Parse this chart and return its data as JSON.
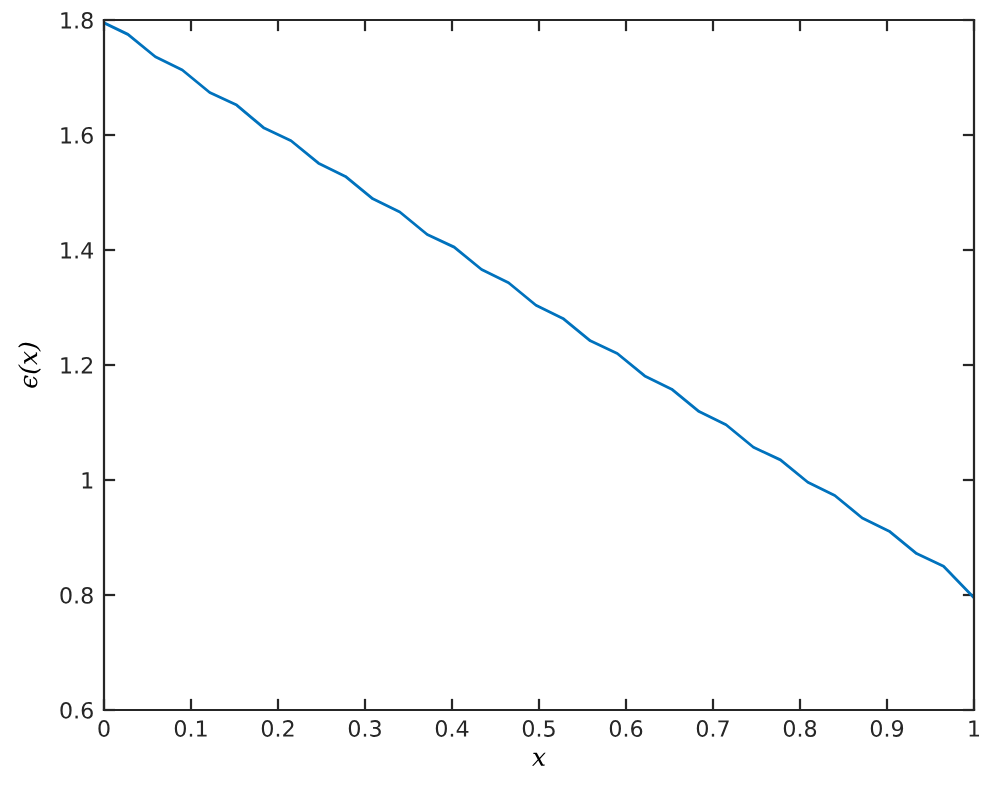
{
  "chart_data": {
    "type": "line",
    "xlabel": "x",
    "ylabel": "ϵ(x)",
    "xlim": [
      0,
      1
    ],
    "ylim": [
      0.6,
      1.8
    ],
    "xticks": [
      0,
      0.1,
      0.2,
      0.3,
      0.4,
      0.5,
      0.6,
      0.7,
      0.8,
      0.9,
      1
    ],
    "yticks": [
      0.6,
      0.8,
      1,
      1.2,
      1.4,
      1.6,
      1.8
    ],
    "grid": false,
    "legend": false,
    "marker": "none",
    "line_style": "solid",
    "series": [
      {
        "color": "#0072bd",
        "x": [
          0,
          0.0275,
          0.059,
          0.09,
          0.1215,
          0.1525,
          0.184,
          0.215,
          0.2465,
          0.2775,
          0.309,
          0.34,
          0.3715,
          0.4025,
          0.434,
          0.465,
          0.4965,
          0.5275,
          0.559,
          0.59,
          0.6215,
          0.6525,
          0.684,
          0.715,
          0.7465,
          0.7775,
          0.809,
          0.84,
          0.8715,
          0.9025,
          0.934,
          0.965,
          1
        ],
        "values": [
          1.795,
          1.775,
          1.736,
          1.713,
          1.674,
          1.652,
          1.612,
          1.59,
          1.551,
          1.528,
          1.489,
          1.466,
          1.427,
          1.405,
          1.366,
          1.343,
          1.304,
          1.281,
          1.242,
          1.22,
          1.181,
          1.158,
          1.119,
          1.096,
          1.057,
          1.035,
          0.996,
          0.973,
          0.934,
          0.911,
          0.872,
          0.85,
          0.795
        ]
      }
    ]
  }
}
